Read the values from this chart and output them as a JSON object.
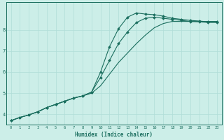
{
  "title": "",
  "xlabel": "Humidex (Indice chaleur)",
  "ylabel": "",
  "background_color": "#cceee8",
  "grid_color": "#b0ddd8",
  "line_color": "#1a6e5e",
  "x_values": [
    0,
    1,
    2,
    3,
    4,
    5,
    6,
    7,
    8,
    9,
    10,
    11,
    12,
    13,
    14,
    15,
    16,
    17,
    18,
    19,
    20,
    21,
    22,
    23
  ],
  "series1": [
    3.7,
    3.85,
    3.97,
    4.12,
    4.32,
    4.47,
    4.62,
    4.77,
    4.87,
    5.05,
    6.0,
    7.2,
    8.05,
    8.6,
    8.8,
    8.75,
    8.72,
    8.65,
    8.55,
    8.5,
    8.45,
    8.42,
    8.38,
    8.38
  ],
  "series2": [
    3.7,
    3.85,
    3.97,
    4.12,
    4.32,
    4.47,
    4.62,
    4.77,
    4.87,
    5.05,
    5.75,
    6.55,
    7.35,
    7.9,
    8.35,
    8.55,
    8.6,
    8.55,
    8.5,
    8.45,
    8.4,
    8.38,
    8.35,
    8.35
  ],
  "series3": [
    3.7,
    3.85,
    3.97,
    4.12,
    4.32,
    4.47,
    4.62,
    4.77,
    4.87,
    5.0,
    5.35,
    5.9,
    6.45,
    6.9,
    7.35,
    7.75,
    8.1,
    8.3,
    8.4,
    8.4,
    8.4,
    8.4,
    8.4,
    8.4
  ],
  "ylim": [
    3.5,
    9.3
  ],
  "yticks": [
    4,
    5,
    6,
    7,
    8
  ],
  "ytick_labels": [
    "4",
    "5",
    "6",
    "7",
    "8"
  ],
  "markersize": 2.0,
  "linewidth": 0.8
}
